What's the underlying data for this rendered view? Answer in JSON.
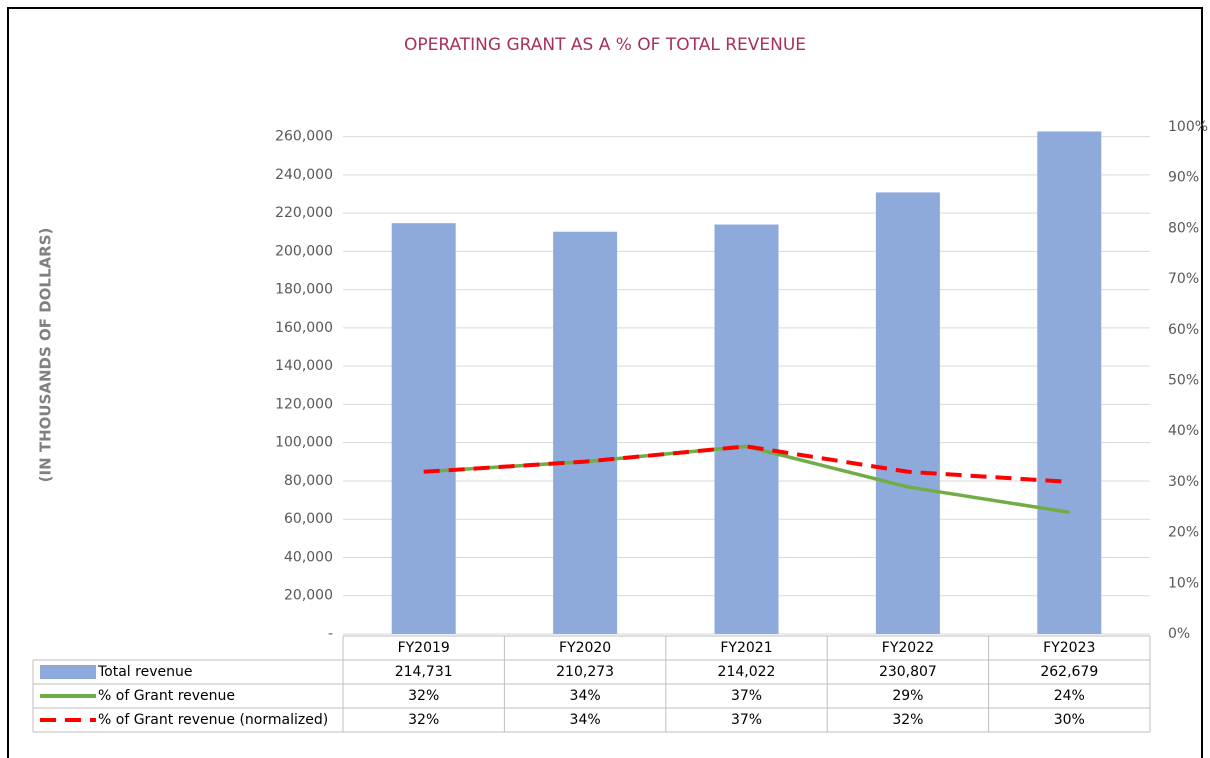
{
  "chart_data": {
    "type": "bar",
    "title": "OPERATING GRANT AS A % OF TOTAL REVENUE",
    "ylabel": "(IN THOUSANDS OF DOLLARS)",
    "categories": [
      "FY2019",
      "FY2020",
      "FY2021",
      "FY2022",
      "FY2023"
    ],
    "series": [
      {
        "name": "Total revenue",
        "type": "bar",
        "color": "#8eaadb",
        "values": [
          214731,
          210273,
          214022,
          230807,
          262679
        ],
        "value_labels": [
          "214,731",
          "210,273",
          "214,022",
          "230,807",
          "262,679"
        ]
      },
      {
        "name": "% of Grant revenue",
        "type": "line",
        "axis": "y2",
        "color": "#70ad47",
        "dashed": false,
        "values": [
          32,
          34,
          37,
          29,
          24
        ],
        "value_labels": [
          "32%",
          "34%",
          "37%",
          "29%",
          "24%"
        ]
      },
      {
        "name": "% of Grant revenue (normalized)",
        "type": "line",
        "axis": "y2",
        "color": "#ff0000",
        "dashed": true,
        "values": [
          32,
          34,
          37,
          32,
          30
        ],
        "value_labels": [
          "32%",
          "34%",
          "37%",
          "32%",
          "30%"
        ]
      }
    ],
    "ylim": [
      0,
      265000
    ],
    "yticks": [
      {
        "value": 0,
        "label": "-"
      },
      {
        "value": 20000,
        "label": "20,000"
      },
      {
        "value": 40000,
        "label": "40,000"
      },
      {
        "value": 60000,
        "label": "60,000"
      },
      {
        "value": 80000,
        "label": "80,000"
      },
      {
        "value": 100000,
        "label": "100,000"
      },
      {
        "value": 120000,
        "label": "120,000"
      },
      {
        "value": 140000,
        "label": "140,000"
      },
      {
        "value": 160000,
        "label": "160,000"
      },
      {
        "value": 180000,
        "label": "180,000"
      },
      {
        "value": 200000,
        "label": "200,000"
      },
      {
        "value": 220000,
        "label": "220,000"
      },
      {
        "value": 240000,
        "label": "240,000"
      },
      {
        "value": 260000,
        "label": "260,000"
      }
    ],
    "y2lim": [
      0,
      100
    ],
    "y2ticks": [
      {
        "value": 0,
        "label": "0%"
      },
      {
        "value": 10,
        "label": "10%"
      },
      {
        "value": 20,
        "label": "20%"
      },
      {
        "value": 30,
        "label": "30%"
      },
      {
        "value": 40,
        "label": "40%"
      },
      {
        "value": 50,
        "label": "50%"
      },
      {
        "value": 60,
        "label": "60%"
      },
      {
        "value": 70,
        "label": "70%"
      },
      {
        "value": 80,
        "label": "80%"
      },
      {
        "value": 90,
        "label": "90%"
      },
      {
        "value": 100,
        "label": "100%"
      }
    ],
    "grid": true
  }
}
